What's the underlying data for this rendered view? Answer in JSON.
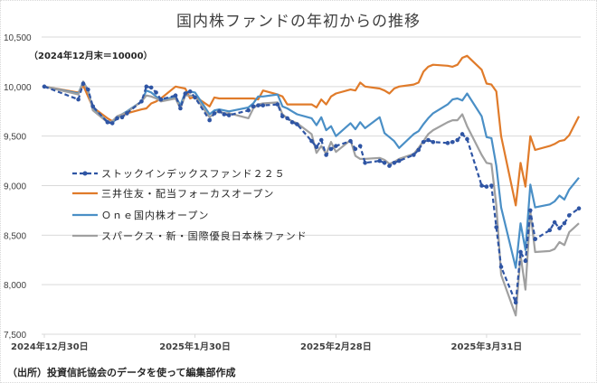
{
  "chart_data": {
    "type": "line",
    "title": "国内株ファンドの年初からの推移",
    "subtitle": "（2024年12月末＝10000）",
    "source": "（出所）投資信託協会のデータを使って編集部作成",
    "xlabel": "",
    "ylabel": "",
    "ylim": [
      7500,
      10500
    ],
    "yticks": [
      7500,
      8000,
      8500,
      9000,
      9500,
      10000,
      10500
    ],
    "ytick_labels": [
      "7,500",
      "8,000",
      "8,500",
      "9,000",
      "9,500",
      "10,000",
      "10,500"
    ],
    "x_unit": "days since 2024-12-30",
    "xlim": [
      0,
      110
    ],
    "xticks": [
      0,
      31,
      60,
      91
    ],
    "xtick_labels": [
      "2024年12月30日",
      "2025年1月30日",
      "2025年2月28日",
      "2025年3月31日"
    ],
    "grid": true,
    "legend_position": "left-middle",
    "x": [
      0,
      7,
      8,
      9,
      10,
      13,
      14,
      15,
      16,
      17,
      20,
      21,
      22,
      23,
      24,
      27,
      28,
      29,
      30,
      31,
      34,
      35,
      36,
      37,
      38,
      42,
      43,
      44,
      45,
      48,
      49,
      50,
      51,
      52,
      55,
      56,
      57,
      58,
      59,
      60,
      63,
      64,
      65,
      66,
      69,
      70,
      71,
      72,
      73,
      76,
      77,
      78,
      79,
      80,
      83,
      84,
      85,
      86,
      87,
      90,
      91,
      92,
      93,
      94,
      97,
      98,
      99,
      100,
      101,
      104,
      105,
      106,
      107,
      108,
      110
    ],
    "series": [
      {
        "name": "ストックインデックスファンド２２５",
        "color": "#2f55a4",
        "style": "dashed-marker",
        "values": [
          10000,
          9870,
          10030,
          9970,
          9800,
          9640,
          9630,
          9680,
          9690,
          9730,
          9850,
          10000,
          9990,
          9940,
          9870,
          9910,
          9780,
          9930,
          9950,
          9890,
          9660,
          9730,
          9750,
          9720,
          9710,
          9760,
          9800,
          9810,
          9810,
          9820,
          9700,
          9680,
          9640,
          9620,
          9450,
          9390,
          9460,
          9310,
          9370,
          9400,
          9450,
          9370,
          9400,
          9230,
          9250,
          9230,
          9200,
          9230,
          9250,
          9310,
          9360,
          9440,
          9460,
          9440,
          9430,
          9440,
          9460,
          9520,
          9470,
          9000,
          8990,
          9000,
          8580,
          8180,
          7820,
          8330,
          8240,
          8750,
          8460,
          8550,
          8630,
          8570,
          8620,
          8700,
          8770
        ]
      },
      {
        "name": "三井住友・配当フォーカスオープン",
        "color": "#e07b2a",
        "style": "solid",
        "values": [
          10000,
          9940,
          10010,
          9900,
          9790,
          9680,
          9650,
          9690,
          9710,
          9730,
          9770,
          9780,
          9830,
          9850,
          9880,
          10000,
          9990,
          9980,
          9880,
          9900,
          9800,
          9890,
          9880,
          9880,
          9880,
          9880,
          9880,
          9870,
          9960,
          9920,
          9900,
          9820,
          9820,
          9820,
          9820,
          9790,
          9870,
          9820,
          9900,
          9930,
          9970,
          9960,
          10040,
          10000,
          9980,
          9960,
          9930,
          9980,
          10000,
          10020,
          10040,
          10150,
          10200,
          10220,
          10210,
          10200,
          10220,
          10290,
          10310,
          10170,
          10030,
          10020,
          9950,
          9500,
          8800,
          9230,
          8990,
          9500,
          9360,
          9400,
          9420,
          9450,
          9460,
          9510,
          9700
        ]
      },
      {
        "name": "Ｏｎｅ国内株オープン",
        "color": "#4a8fc6",
        "style": "solid",
        "values": [
          10000,
          9930,
          10050,
          9960,
          9770,
          9650,
          9630,
          9690,
          9720,
          9750,
          9850,
          9960,
          9940,
          9900,
          9860,
          9900,
          9810,
          9940,
          9950,
          9940,
          9720,
          9760,
          9770,
          9760,
          9750,
          9790,
          9830,
          9900,
          9900,
          9920,
          9800,
          9780,
          9750,
          9720,
          9680,
          9610,
          9690,
          9560,
          9600,
          9500,
          9630,
          9570,
          9640,
          9580,
          9690,
          9530,
          9490,
          9450,
          9380,
          9520,
          9550,
          9620,
          9680,
          9730,
          9820,
          9870,
          9880,
          9860,
          9930,
          9700,
          9490,
          9480,
          9200,
          8780,
          8170,
          8620,
          8350,
          9010,
          8780,
          8810,
          8840,
          8900,
          8860,
          8960,
          9080
        ]
      },
      {
        "name": "スパークス・新・国際優良日本株ファンド",
        "color": "#a0a0a0",
        "style": "solid",
        "values": [
          10000,
          9920,
          10050,
          9950,
          9760,
          9640,
          9650,
          9700,
          9720,
          9740,
          9850,
          9910,
          9900,
          9880,
          9850,
          9880,
          9780,
          9910,
          9910,
          9900,
          9690,
          9730,
          9750,
          9730,
          9730,
          9680,
          9780,
          9820,
          9830,
          9840,
          9720,
          9680,
          9650,
          9630,
          9520,
          9330,
          9400,
          9320,
          9440,
          9340,
          9460,
          9300,
          9270,
          9270,
          9280,
          9260,
          9220,
          9240,
          9270,
          9320,
          9380,
          9450,
          9520,
          9560,
          9640,
          9660,
          9660,
          9720,
          9600,
          9310,
          9230,
          9220,
          8800,
          8100,
          7690,
          8300,
          7950,
          8740,
          8330,
          8340,
          8360,
          8430,
          8400,
          8530,
          8620
        ]
      }
    ]
  }
}
